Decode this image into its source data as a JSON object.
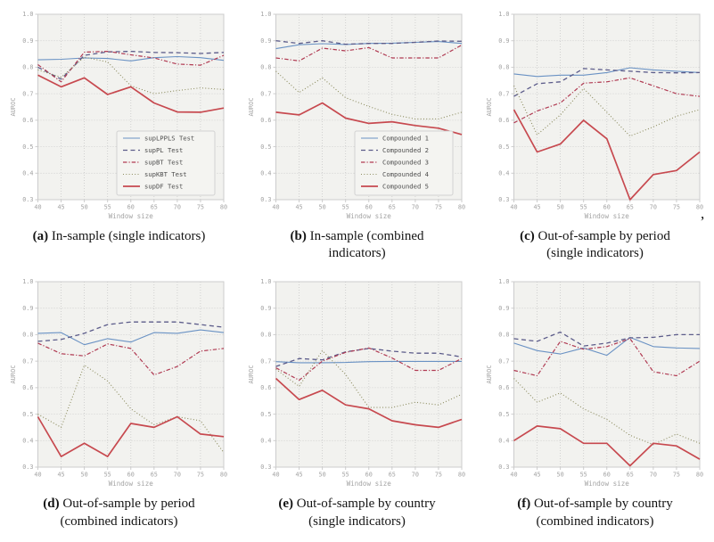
{
  "figure": {
    "stray_comma": ",",
    "plot_bg": "#f2f2ef",
    "grid_color": "#c9c9c9",
    "spine_color": "#cccccc",
    "tick_text_color": "#a3a3a3",
    "legend_text_color": "#4d4d4d",
    "colors": {
      "blue": "#6a92c4",
      "navy_dashed": "#5c5c8a",
      "crimson_dashdot": "#b03a52",
      "olive_dotted": "#8b8b5e",
      "red_solid": "#c7494f"
    }
  },
  "chart_data": [
    {
      "id": "a",
      "type": "line",
      "caption_label": "(a)",
      "caption_text": "In-sample (single indicators)",
      "xlabel": "Window size",
      "ylabel": "AUROC",
      "x": [
        40,
        45,
        50,
        55,
        60,
        65,
        70,
        75,
        80
      ],
      "ylim": [
        0.3,
        1.0
      ],
      "y_ticks": [
        0.3,
        0.4,
        0.5,
        0.6,
        0.7,
        0.8,
        0.9,
        1.0
      ],
      "grid": true,
      "legend": true,
      "legend_position": "lower right",
      "series": [
        {
          "name": "supLPPLS Test",
          "style": "solid",
          "color": "#6a92c4",
          "values": [
            0.828,
            0.83,
            0.835,
            0.833,
            0.824,
            0.836,
            0.84,
            0.836,
            0.826
          ]
        },
        {
          "name": "supPL Test",
          "style": "dashed",
          "color": "#5c5c8a",
          "values": [
            0.8,
            0.755,
            0.845,
            0.858,
            0.86,
            0.856,
            0.855,
            0.852,
            0.856
          ]
        },
        {
          "name": "supBT Test",
          "style": "dashdot",
          "color": "#b03a52",
          "values": [
            0.81,
            0.745,
            0.857,
            0.86,
            0.847,
            0.835,
            0.812,
            0.808,
            0.845
          ]
        },
        {
          "name": "supKBT Test",
          "style": "dotted",
          "color": "#8b8b5e",
          "values": [
            0.79,
            0.762,
            0.838,
            0.82,
            0.73,
            0.7,
            0.712,
            0.722,
            0.716
          ]
        },
        {
          "name": "supDF Test",
          "style": "solid-thick",
          "color": "#c7494f",
          "values": [
            0.77,
            0.726,
            0.76,
            0.697,
            0.726,
            0.665,
            0.631,
            0.63,
            0.646
          ]
        }
      ]
    },
    {
      "id": "b",
      "type": "line",
      "caption_label": "(b)",
      "caption_text": "In-sample (combined indicators)",
      "xlabel": "Window size",
      "ylabel": "AUROC",
      "x": [
        40,
        45,
        50,
        55,
        60,
        65,
        70,
        75,
        80
      ],
      "ylim": [
        0.3,
        1.0
      ],
      "y_ticks": [
        0.3,
        0.4,
        0.5,
        0.6,
        0.7,
        0.8,
        0.9,
        1.0
      ],
      "grid": true,
      "legend": true,
      "legend_position": "lower right",
      "series": [
        {
          "name": "Compounded 1",
          "style": "solid",
          "color": "#6a92c4",
          "values": [
            0.87,
            0.885,
            0.889,
            0.886,
            0.89,
            0.891,
            0.894,
            0.897,
            0.89
          ]
        },
        {
          "name": "Compounded 2",
          "style": "dashed",
          "color": "#5c5c8a",
          "values": [
            0.9,
            0.89,
            0.9,
            0.887,
            0.89,
            0.89,
            0.894,
            0.899,
            0.898
          ]
        },
        {
          "name": "Compounded 3",
          "style": "dashdot",
          "color": "#b03a52",
          "values": [
            0.835,
            0.824,
            0.872,
            0.862,
            0.874,
            0.835,
            0.835,
            0.835,
            0.884
          ]
        },
        {
          "name": "Compounded 4",
          "style": "dotted",
          "color": "#8b8b5e",
          "values": [
            0.785,
            0.705,
            0.76,
            0.685,
            0.652,
            0.622,
            0.605,
            0.605,
            0.63
          ]
        },
        {
          "name": "Compounded 5",
          "style": "solid-thick",
          "color": "#c7494f",
          "values": [
            0.63,
            0.62,
            0.665,
            0.608,
            0.588,
            0.594,
            0.58,
            0.57,
            0.546
          ]
        }
      ]
    },
    {
      "id": "c",
      "type": "line",
      "caption_label": "(c)",
      "caption_text": "Out-of-sample by period (single indicators)",
      "xlabel": "Window size",
      "ylabel": "AUROC",
      "x": [
        40,
        45,
        50,
        55,
        60,
        65,
        70,
        75,
        80
      ],
      "ylim": [
        0.3,
        1.0
      ],
      "y_ticks": [
        0.3,
        0.4,
        0.5,
        0.6,
        0.7,
        0.8,
        0.9,
        1.0
      ],
      "grid": true,
      "legend": false,
      "series": [
        {
          "name": "supLPPLS Test",
          "style": "solid",
          "color": "#6a92c4",
          "values": [
            0.775,
            0.765,
            0.77,
            0.77,
            0.78,
            0.798,
            0.79,
            0.785,
            0.78
          ]
        },
        {
          "name": "supPL Test",
          "style": "dashed",
          "color": "#5c5c8a",
          "values": [
            0.69,
            0.738,
            0.745,
            0.795,
            0.79,
            0.785,
            0.78,
            0.779,
            0.78
          ]
        },
        {
          "name": "supBT Test",
          "style": "dashdot",
          "color": "#b03a52",
          "values": [
            0.59,
            0.635,
            0.665,
            0.74,
            0.745,
            0.76,
            0.73,
            0.7,
            0.69
          ]
        },
        {
          "name": "supKBT Test",
          "style": "dotted",
          "color": "#8b8b5e",
          "values": [
            0.73,
            0.545,
            0.62,
            0.72,
            0.63,
            0.54,
            0.575,
            0.615,
            0.64
          ]
        },
        {
          "name": "supDF Test",
          "style": "solid-thick",
          "color": "#c7494f",
          "values": [
            0.64,
            0.48,
            0.51,
            0.6,
            0.53,
            0.3,
            0.395,
            0.41,
            0.48
          ]
        }
      ]
    },
    {
      "id": "d",
      "type": "line",
      "caption_label": "(d)",
      "caption_text": "Out-of-sample by period (combined indicators)",
      "xlabel": "Window size",
      "ylabel": "AUROC",
      "x": [
        40,
        45,
        50,
        55,
        60,
        65,
        70,
        75,
        80
      ],
      "ylim": [
        0.3,
        1.0
      ],
      "y_ticks": [
        0.3,
        0.4,
        0.5,
        0.6,
        0.7,
        0.8,
        0.9,
        1.0
      ],
      "grid": true,
      "legend": false,
      "series": [
        {
          "name": "Compounded 1",
          "style": "solid",
          "color": "#6a92c4",
          "values": [
            0.805,
            0.808,
            0.762,
            0.785,
            0.772,
            0.808,
            0.805,
            0.818,
            0.808
          ]
        },
        {
          "name": "Compounded 2",
          "style": "dashed",
          "color": "#5c5c8a",
          "values": [
            0.775,
            0.782,
            0.805,
            0.838,
            0.848,
            0.848,
            0.848,
            0.838,
            0.828
          ]
        },
        {
          "name": "Compounded 3",
          "style": "dashdot",
          "color": "#b03a52",
          "values": [
            0.768,
            0.728,
            0.72,
            0.765,
            0.748,
            0.648,
            0.68,
            0.738,
            0.748
          ]
        },
        {
          "name": "Compounded 4",
          "style": "dotted",
          "color": "#8b8b5e",
          "values": [
            0.5,
            0.45,
            0.685,
            0.625,
            0.52,
            0.46,
            0.49,
            0.475,
            0.355
          ]
        },
        {
          "name": "Compounded 5",
          "style": "solid-thick",
          "color": "#c7494f",
          "values": [
            0.49,
            0.34,
            0.39,
            0.34,
            0.465,
            0.45,
            0.49,
            0.425,
            0.415
          ]
        }
      ]
    },
    {
      "id": "e",
      "type": "line",
      "caption_label": "(e)",
      "caption_text": "Out-of-sample by country (single indicators)",
      "xlabel": "Window size",
      "ylabel": "AUROC",
      "x": [
        40,
        45,
        50,
        55,
        60,
        65,
        70,
        75,
        80
      ],
      "ylim": [
        0.3,
        1.0
      ],
      "y_ticks": [
        0.3,
        0.4,
        0.5,
        0.6,
        0.7,
        0.8,
        0.9,
        1.0
      ],
      "grid": true,
      "legend": false,
      "series": [
        {
          "name": "supLPPLS Test",
          "style": "solid",
          "color": "#6a92c4",
          "values": [
            0.698,
            0.694,
            0.694,
            0.695,
            0.698,
            0.699,
            0.699,
            0.699,
            0.699
          ]
        },
        {
          "name": "supPL Test",
          "style": "dashed",
          "color": "#5c5c8a",
          "values": [
            0.68,
            0.71,
            0.705,
            0.735,
            0.748,
            0.738,
            0.73,
            0.73,
            0.716
          ]
        },
        {
          "name": "supBT Test",
          "style": "dashdot",
          "color": "#b03a52",
          "values": [
            0.675,
            0.628,
            0.7,
            0.733,
            0.75,
            0.712,
            0.665,
            0.665,
            0.71
          ]
        },
        {
          "name": "supKBT Test",
          "style": "dotted",
          "color": "#8b8b5e",
          "values": [
            0.67,
            0.605,
            0.74,
            0.65,
            0.525,
            0.525,
            0.545,
            0.535,
            0.575
          ]
        },
        {
          "name": "supDF Test",
          "style": "solid-thick",
          "color": "#c7494f",
          "values": [
            0.635,
            0.555,
            0.59,
            0.535,
            0.52,
            0.475,
            0.46,
            0.45,
            0.48
          ]
        }
      ]
    },
    {
      "id": "f",
      "type": "line",
      "caption_label": "(f)",
      "caption_text": "Out-of-sample by country (combined indicators)",
      "xlabel": "Window size",
      "ylabel": "AUROC",
      "x": [
        40,
        45,
        50,
        55,
        60,
        65,
        70,
        75,
        80
      ],
      "ylim": [
        0.3,
        1.0
      ],
      "y_ticks": [
        0.3,
        0.4,
        0.5,
        0.6,
        0.7,
        0.8,
        0.9,
        1.0
      ],
      "grid": true,
      "legend": false,
      "series": [
        {
          "name": "Compounded 1",
          "style": "solid",
          "color": "#6a92c4",
          "values": [
            0.768,
            0.74,
            0.727,
            0.75,
            0.722,
            0.79,
            0.755,
            0.75,
            0.748
          ]
        },
        {
          "name": "Compounded 2",
          "style": "dashed",
          "color": "#5c5c8a",
          "values": [
            0.785,
            0.775,
            0.81,
            0.757,
            0.768,
            0.788,
            0.79,
            0.8,
            0.8
          ]
        },
        {
          "name": "Compounded 3",
          "style": "dashdot",
          "color": "#b03a52",
          "values": [
            0.665,
            0.645,
            0.775,
            0.745,
            0.755,
            0.785,
            0.66,
            0.645,
            0.7
          ]
        },
        {
          "name": "Compounded 4",
          "style": "dotted",
          "color": "#8b8b5e",
          "values": [
            0.635,
            0.545,
            0.58,
            0.52,
            0.48,
            0.42,
            0.385,
            0.425,
            0.39
          ]
        },
        {
          "name": "Compounded 5",
          "style": "solid-thick",
          "color": "#c7494f",
          "values": [
            0.4,
            0.455,
            0.445,
            0.39,
            0.39,
            0.305,
            0.39,
            0.38,
            0.33
          ]
        }
      ]
    }
  ]
}
